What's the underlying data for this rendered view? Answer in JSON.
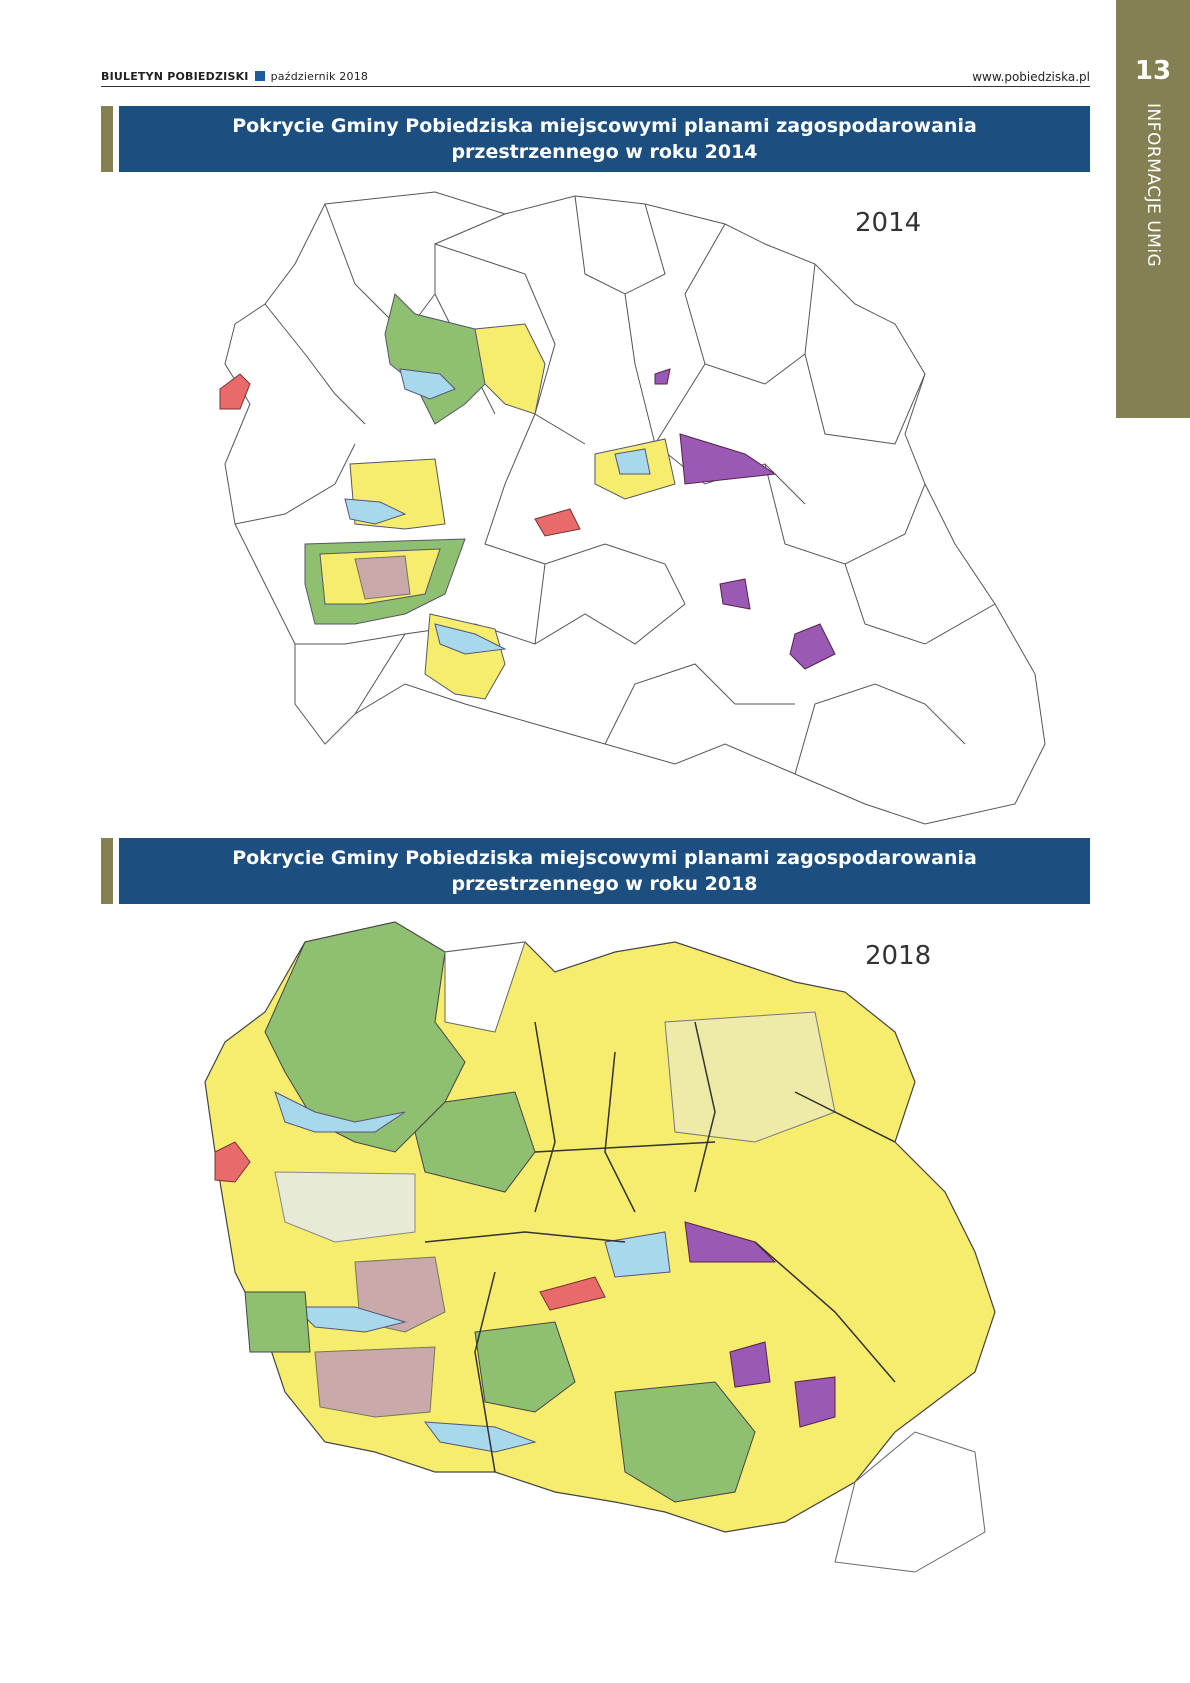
{
  "header": {
    "publication": "BIULETYN POBIEDZISKI",
    "date": "październik 2018",
    "website": "www.pobiedziska.pl"
  },
  "side_tab": {
    "page_number": "13",
    "section": "INFORMACJE UMiG",
    "color": "#838154"
  },
  "maps": [
    {
      "title_line1": "Pokrycie Gminy Pobiedziska miejscowymi planami zagospodarowania",
      "title_line2": "przestrzennego w roku 2014",
      "year_label": "2014"
    },
    {
      "title_line1": "Pokrycie Gminy Pobiedziska miejscowymi planami zagospodarowania",
      "title_line2": "przestrzennego w roku 2018",
      "year_label": "2018"
    }
  ],
  "colors": {
    "title_bar": "#1c4e80",
    "residential": "#f6ec6e",
    "green": "#8fbf70",
    "water": "#a8d8ec",
    "commercial": "#e86a6a",
    "industrial": "#9b59b6"
  }
}
